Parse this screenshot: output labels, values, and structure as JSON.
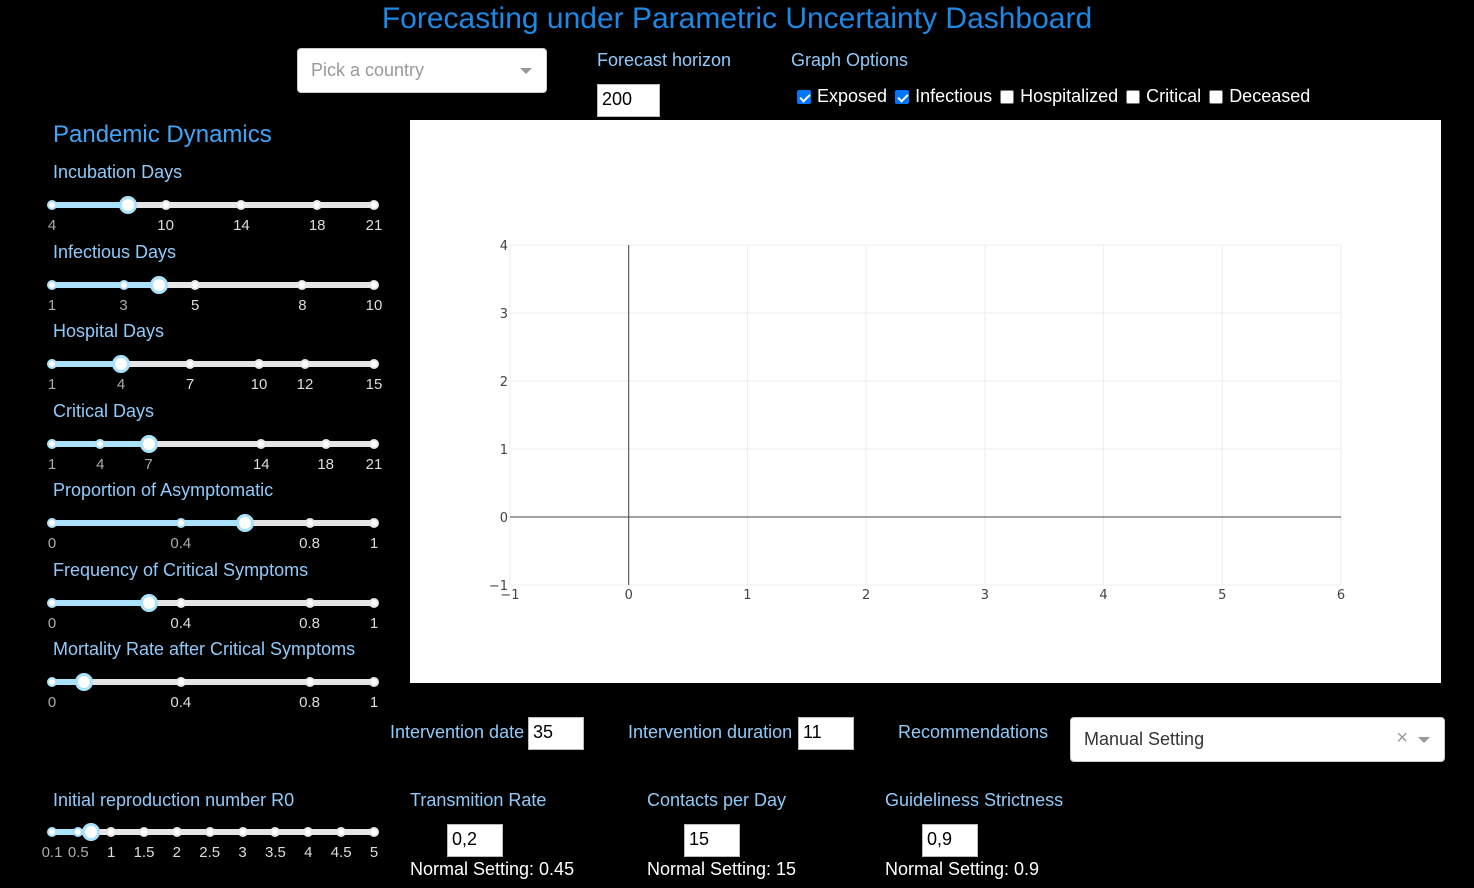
{
  "title": "Forecasting under Parametric Uncertainty Dashboard",
  "country_select": {
    "placeholder": "Pick a country"
  },
  "forecast": {
    "label": "Forecast horizon",
    "value": "200"
  },
  "graph_options": {
    "label": "Graph Options",
    "items": [
      {
        "label": "Exposed",
        "checked": true
      },
      {
        "label": "Infectious",
        "checked": true
      },
      {
        "label": "Hospitalized",
        "checked": false
      },
      {
        "label": "Critical",
        "checked": false
      },
      {
        "label": "Deceased",
        "checked": false
      }
    ]
  },
  "dynamics": {
    "heading": "Pandemic Dynamics",
    "sliders": [
      {
        "label": "Incubation Days",
        "min": 4,
        "max": 21,
        "value": 8,
        "marks": [
          "4",
          "10",
          "14",
          "18",
          "21"
        ],
        "mark_values": [
          4,
          10,
          14,
          18,
          21
        ]
      },
      {
        "label": "Infectious Days",
        "min": 1,
        "max": 10,
        "value": 4,
        "marks": [
          "1",
          "3",
          "5",
          "8",
          "10"
        ],
        "mark_values": [
          1,
          3,
          5,
          8,
          10
        ]
      },
      {
        "label": "Hospital Days",
        "min": 1,
        "max": 15,
        "value": 4,
        "marks": [
          "1",
          "4",
          "7",
          "10",
          "12",
          "15"
        ],
        "mark_values": [
          1,
          4,
          7,
          10,
          12,
          15
        ]
      },
      {
        "label": "Critical Days",
        "min": 1,
        "max": 21,
        "value": 7,
        "marks": [
          "1",
          "4",
          "7",
          "14",
          "18",
          "21"
        ],
        "mark_values": [
          1,
          4,
          7,
          14,
          18,
          21
        ]
      },
      {
        "label": "Proportion of Asymptomatic",
        "min": 0,
        "max": 1,
        "value": 0.6,
        "marks": [
          "0",
          "0.4",
          "0.8",
          "1"
        ],
        "mark_values": [
          0,
          0.4,
          0.8,
          1
        ]
      },
      {
        "label": "Frequency of Critical Symptoms",
        "min": 0,
        "max": 1,
        "value": 0.3,
        "marks": [
          "0",
          "0.4",
          "0.8",
          "1"
        ],
        "mark_values": [
          0,
          0.4,
          0.8,
          1
        ]
      },
      {
        "label": "Mortality Rate after Critical Symptoms",
        "min": 0,
        "max": 1,
        "value": 0.1,
        "marks": [
          "0",
          "0.4",
          "0.8",
          "1"
        ],
        "mark_values": [
          0,
          0.4,
          0.8,
          1
        ]
      }
    ]
  },
  "r0": {
    "label": "Initial reproduction number R0",
    "min": 0.1,
    "max": 5,
    "value": 0.7,
    "marks": [
      "0.1",
      "0.5",
      "1",
      "1.5",
      "2",
      "2.5",
      "3",
      "3.5",
      "4",
      "4.5",
      "5"
    ],
    "mark_values": [
      0.1,
      0.5,
      1,
      1.5,
      2,
      2.5,
      3,
      3.5,
      4,
      4.5,
      5
    ]
  },
  "intervention": {
    "date_label": "Intervention date",
    "date_value": "35",
    "duration_label": "Intervention duration",
    "duration_value": "11",
    "recommendations_label": "Recommendations",
    "recommendations_value": "Manual Setting",
    "clear_glyph": "×"
  },
  "params": [
    {
      "label": "Transmition Rate",
      "value": "0,2",
      "normal": "Normal Setting: 0.45"
    },
    {
      "label": "Contacts per Day",
      "value": "15",
      "normal": "Normal Setting: 15"
    },
    {
      "label": "Guideliness Strictness",
      "value": "0,9",
      "normal": "Normal Setting: 0.9"
    }
  ],
  "chart_data": {
    "type": "line",
    "series": [],
    "xlim": [
      -1,
      6
    ],
    "ylim": [
      -1,
      4
    ],
    "x_ticks": [
      "−1",
      "0",
      "1",
      "2",
      "3",
      "4",
      "5",
      "6"
    ],
    "y_ticks": [
      "−1",
      "0",
      "1",
      "2",
      "3",
      "4"
    ],
    "grid": true
  }
}
